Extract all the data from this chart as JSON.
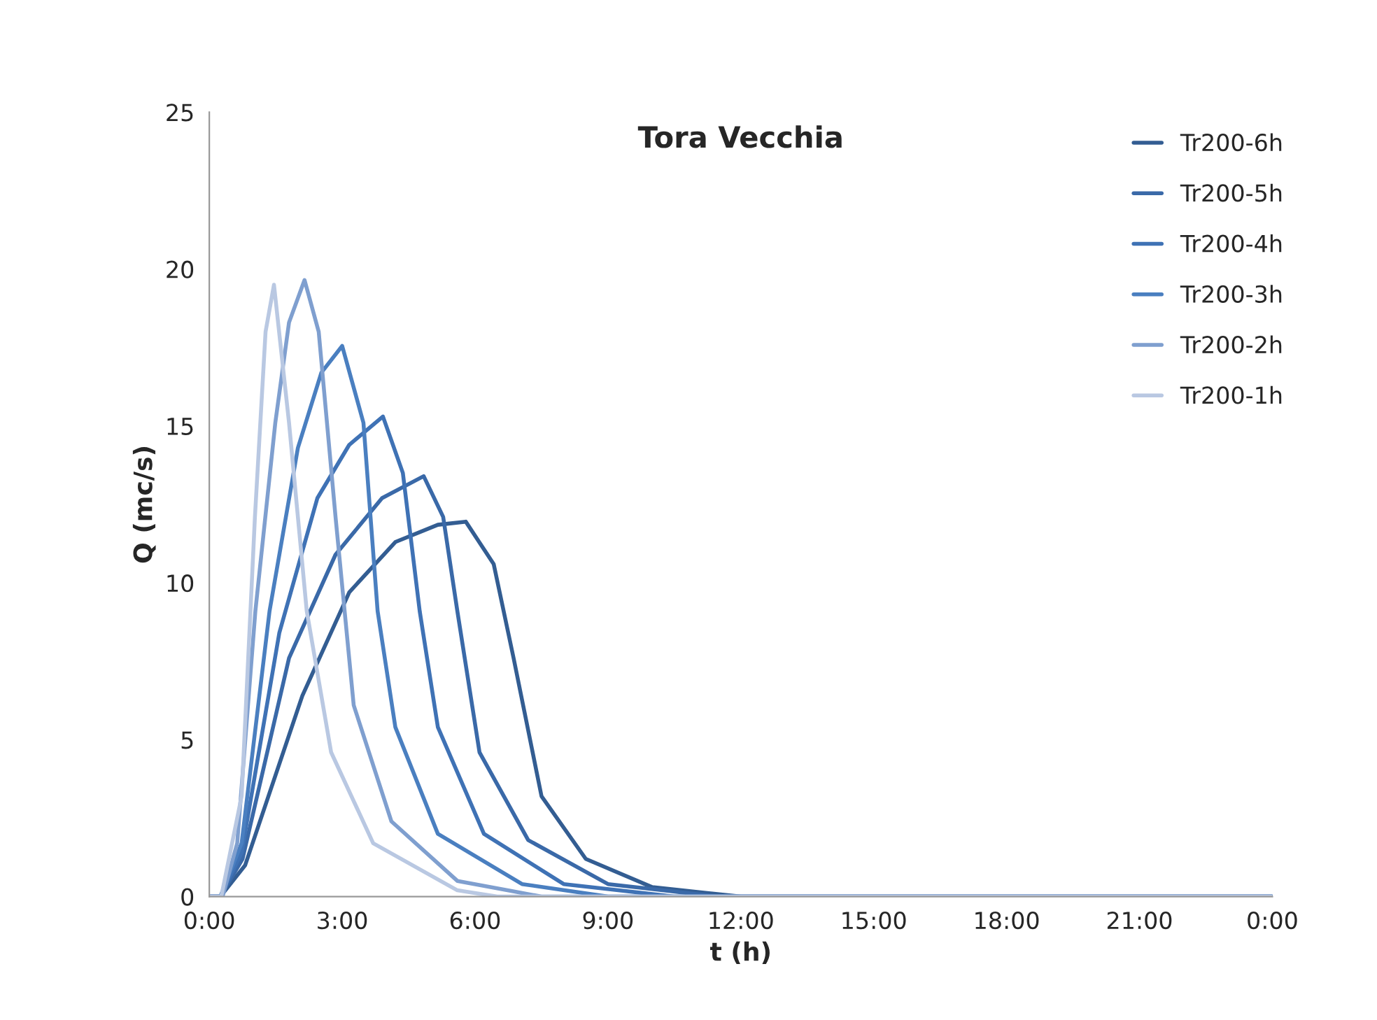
{
  "chart_data": {
    "type": "line",
    "title": "Tora Vecchia",
    "xlabel": "t (h)",
    "ylabel": "Q (mc/s)",
    "xlim": [
      0,
      24
    ],
    "xticks": [
      {
        "value": 0,
        "label": "0:00"
      },
      {
        "value": 3,
        "label": "3:00"
      },
      {
        "value": 6,
        "label": "6:00"
      },
      {
        "value": 9,
        "label": "9:00"
      },
      {
        "value": 12,
        "label": "12:00"
      },
      {
        "value": 15,
        "label": "15:00"
      },
      {
        "value": 18,
        "label": "18:00"
      },
      {
        "value": 21,
        "label": "21:00"
      },
      {
        "value": 24,
        "label": "0:00"
      }
    ],
    "ylim": [
      0,
      25
    ],
    "yticks": [
      0,
      5,
      10,
      15,
      20,
      25
    ],
    "grid": false,
    "legend": "top right",
    "marker": "none",
    "line_style": "solid",
    "series": [
      {
        "name": "Tr200-6h",
        "color": "#335d92",
        "x": [
          0,
          0.25,
          0.81,
          2.1,
          3.16,
          4.2,
          5.16,
          5.79,
          6.42,
          6.87,
          7.5,
          8.5,
          10,
          12,
          24
        ],
        "values": [
          0,
          0,
          1.0,
          6.4,
          9.7,
          11.3,
          11.85,
          11.95,
          10.6,
          7.6,
          3.2,
          1.2,
          0.3,
          0,
          0
        ]
      },
      {
        "name": "Tr200-5h",
        "color": "#3a69a8",
        "x": [
          0,
          0.25,
          0.75,
          1.8,
          2.85,
          3.9,
          4.84,
          5.28,
          5.6,
          6.1,
          7.2,
          9,
          11.5,
          24
        ],
        "values": [
          0,
          0,
          1.2,
          7.6,
          10.9,
          12.7,
          13.4,
          12.1,
          9.1,
          4.6,
          1.8,
          0.4,
          0,
          0
        ]
      },
      {
        "name": "Tr200-4h",
        "color": "#3f72b5",
        "x": [
          0,
          0.25,
          0.73,
          1.58,
          2.44,
          3.16,
          3.92,
          4.37,
          4.75,
          5.16,
          6.2,
          8,
          10.5,
          24
        ],
        "values": [
          0,
          0,
          1.4,
          8.4,
          12.7,
          14.4,
          15.3,
          13.5,
          9.1,
          5.4,
          2.0,
          0.4,
          0,
          0
        ]
      },
      {
        "name": "Tr200-3h",
        "color": "#4a7fc0",
        "x": [
          0,
          0.25,
          0.73,
          1.36,
          2.0,
          2.53,
          3.0,
          3.48,
          3.8,
          4.2,
          5.16,
          7.06,
          9,
          24
        ],
        "values": [
          0,
          0,
          1.7,
          9.1,
          14.3,
          16.7,
          17.55,
          15.1,
          9.1,
          5.4,
          2.0,
          0.4,
          0,
          0
        ]
      },
      {
        "name": "Tr200-2h",
        "color": "#7f9fcf",
        "x": [
          0,
          0.3,
          0.63,
          1.04,
          1.49,
          1.8,
          2.15,
          2.47,
          2.85,
          3.26,
          4.11,
          5.6,
          7.5,
          24
        ],
        "values": [
          0,
          0,
          1.7,
          9.1,
          15.1,
          18.3,
          19.65,
          18.0,
          12.1,
          6.1,
          2.4,
          0.5,
          0,
          0
        ]
      },
      {
        "name": "Tr200-1h",
        "color": "#b9c8e2",
        "x": [
          0,
          0.27,
          0.73,
          1.03,
          1.27,
          1.46,
          1.8,
          2.2,
          2.75,
          3.7,
          5.6,
          6.5,
          24
        ],
        "values": [
          0,
          0,
          3.2,
          12.1,
          18.0,
          19.5,
          15.1,
          9.1,
          4.6,
          1.7,
          0.2,
          0,
          0
        ]
      }
    ]
  }
}
